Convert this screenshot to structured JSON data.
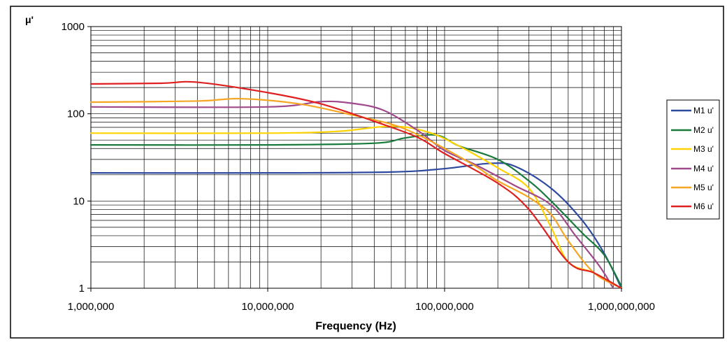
{
  "chart_data": {
    "type": "line",
    "xlabel": "Frequency  (Hz)",
    "ylabel": "μ'",
    "x_scale": "log",
    "y_scale": "log",
    "xlim": [
      1000000,
      1000000000
    ],
    "ylim": [
      1,
      1000
    ],
    "x_ticks": [
      1000000,
      10000000,
      100000000,
      1000000000
    ],
    "x_tick_labels": [
      "1,000,000",
      "10,000,000",
      "100,000,000",
      "1,000,000,000"
    ],
    "y_ticks": [
      1,
      10,
      100,
      1000
    ],
    "y_tick_labels": [
      "1",
      "10",
      "100",
      "1000"
    ],
    "grid": true,
    "legend_position": "right",
    "series": [
      {
        "name": "M1 u'",
        "color": "#2e4a9e",
        "points": [
          [
            1000000,
            21
          ],
          [
            10000000,
            21
          ],
          [
            50000000,
            21.5
          ],
          [
            100000000,
            23.5
          ],
          [
            180000000,
            27
          ],
          [
            250000000,
            25
          ],
          [
            400000000,
            14
          ],
          [
            600000000,
            6
          ],
          [
            800000000,
            2.5
          ],
          [
            1000000000,
            1
          ]
        ]
      },
      {
        "name": "M2 u'",
        "color": "#1a7a3c",
        "points": [
          [
            1000000,
            44
          ],
          [
            10000000,
            44
          ],
          [
            40000000,
            46
          ],
          [
            60000000,
            53
          ],
          [
            90000000,
            57
          ],
          [
            120000000,
            43
          ],
          [
            200000000,
            30
          ],
          [
            300000000,
            17
          ],
          [
            400000000,
            10
          ],
          [
            600000000,
            4.3
          ],
          [
            800000000,
            2.4
          ],
          [
            1000000000,
            1.05
          ]
        ]
      },
      {
        "name": "M3 u'",
        "color": "#ffd400",
        "points": [
          [
            1000000,
            60
          ],
          [
            10000000,
            60
          ],
          [
            25000000,
            63
          ],
          [
            50000000,
            72
          ],
          [
            80000000,
            62
          ],
          [
            120000000,
            43
          ],
          [
            200000000,
            24
          ],
          [
            300000000,
            14
          ],
          [
            400000000,
            5
          ],
          [
            500000000,
            2
          ],
          [
            700000000,
            1.5
          ],
          [
            1000000000,
            1
          ]
        ]
      },
      {
        "name": "M4 u'",
        "color": "#a04a8c",
        "points": [
          [
            1000000,
            120
          ],
          [
            10000000,
            120
          ],
          [
            20000000,
            138
          ],
          [
            30000000,
            132
          ],
          [
            45000000,
            110
          ],
          [
            70000000,
            65
          ],
          [
            100000000,
            38
          ],
          [
            150000000,
            26
          ],
          [
            250000000,
            15
          ],
          [
            400000000,
            9
          ],
          [
            550000000,
            4
          ],
          [
            750000000,
            1.8
          ],
          [
            900000000,
            1
          ]
        ]
      },
      {
        "name": "M5 u'",
        "color": "#f5a623",
        "points": [
          [
            1000000,
            136
          ],
          [
            4000000,
            140
          ],
          [
            7000000,
            149
          ],
          [
            15000000,
            130
          ],
          [
            30000000,
            97
          ],
          [
            50000000,
            76
          ],
          [
            70000000,
            58
          ],
          [
            100000000,
            40
          ],
          [
            150000000,
            25
          ],
          [
            200000000,
            17
          ],
          [
            300000000,
            11
          ],
          [
            400000000,
            7
          ],
          [
            500000000,
            3.5
          ],
          [
            700000000,
            1.5
          ],
          [
            1000000000,
            1
          ]
        ]
      },
      {
        "name": "M6 u'",
        "color": "#e02020",
        "points": [
          [
            1000000,
            220
          ],
          [
            2500000,
            224
          ],
          [
            4000000,
            230
          ],
          [
            10000000,
            175
          ],
          [
            20000000,
            130
          ],
          [
            40000000,
            82
          ],
          [
            70000000,
            54
          ],
          [
            100000000,
            35
          ],
          [
            200000000,
            16
          ],
          [
            300000000,
            8
          ],
          [
            500000000,
            2
          ],
          [
            700000000,
            1.5
          ],
          [
            1000000000,
            1
          ]
        ]
      }
    ]
  }
}
